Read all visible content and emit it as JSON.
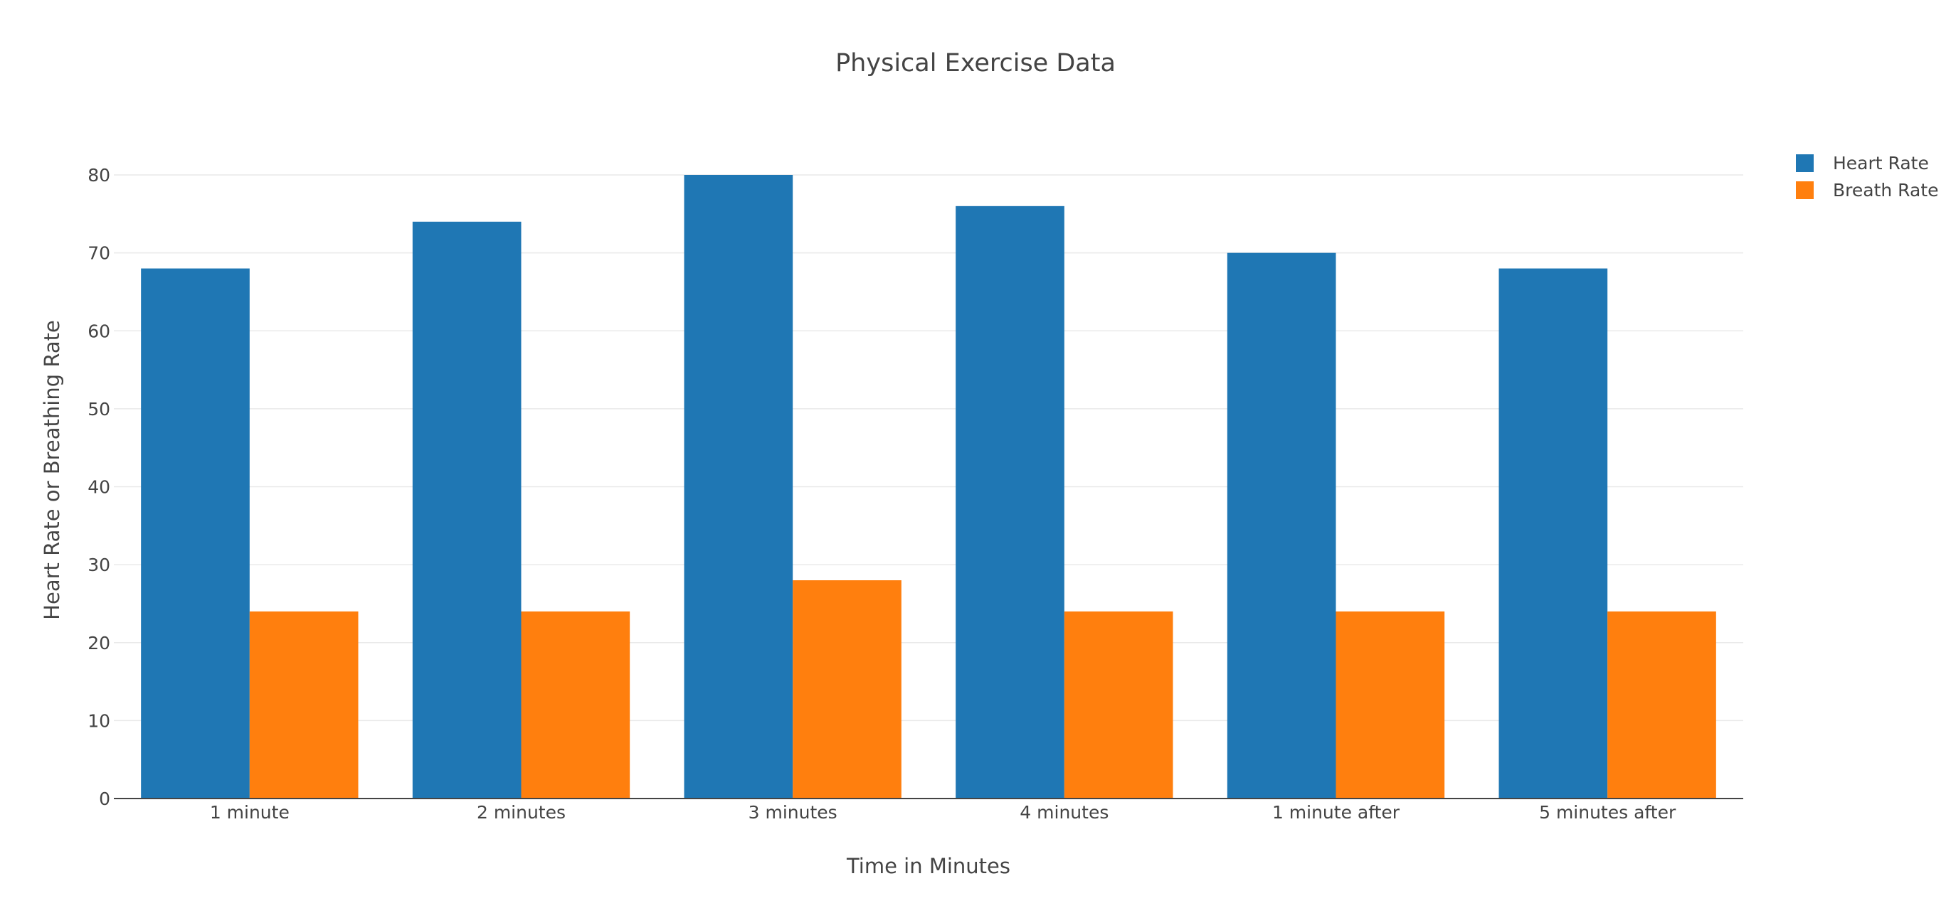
{
  "chart_data": {
    "type": "bar",
    "title": "Physical Exercise Data",
    "xlabel": "Time in Minutes",
    "ylabel": "Heart Rate or Breathing Rate",
    "categories": [
      "1 minute",
      "2 minutes",
      "3 minutes",
      "4 minutes",
      "1 minute after",
      "5 minutes after"
    ],
    "series": [
      {
        "name": "Heart Rate",
        "color": "#1f77b4",
        "values": [
          68,
          74,
          80,
          76,
          70,
          68
        ]
      },
      {
        "name": "Breath Rate",
        "color": "#ff7f0e",
        "values": [
          24,
          24,
          28,
          24,
          24,
          24
        ]
      }
    ],
    "ylim": [
      0,
      80
    ],
    "yticks": [
      0,
      10,
      20,
      30,
      40,
      50,
      60,
      70,
      80
    ],
    "grid": true,
    "legend_position": "top-right"
  }
}
